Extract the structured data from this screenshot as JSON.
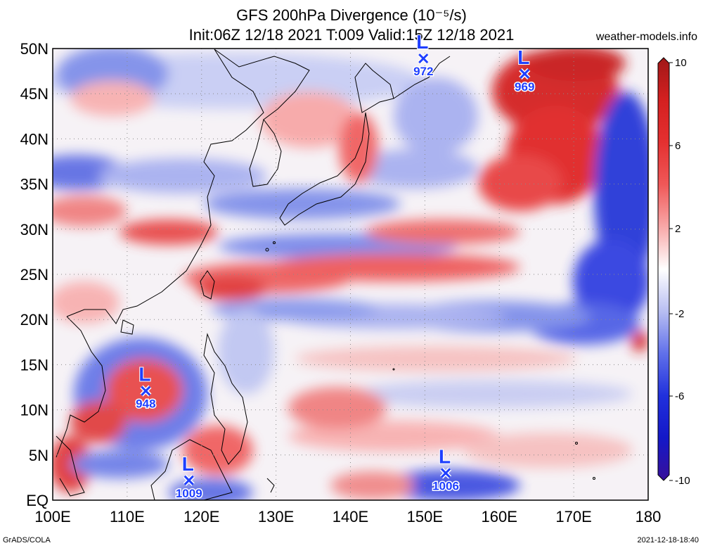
{
  "header": {
    "title_line1": "GFS 200hPa Divergence (10⁻⁵/s)",
    "title_line2": "Init:06Z 12/18 2021 T:009 Valid:15Z 12/18 2021",
    "site": "weather-models.info"
  },
  "footer": {
    "left": "GrADS/COLA",
    "right": "2021-12-18-18:40"
  },
  "map": {
    "lat_labels": [
      "50N",
      "45N",
      "40N",
      "35N",
      "30N",
      "25N",
      "20N",
      "15N",
      "10N",
      "5N",
      "EQ"
    ],
    "lon_labels": [
      "100E",
      "110E",
      "120E",
      "130E",
      "140E",
      "150E",
      "160E",
      "170E",
      "180"
    ],
    "extent": {
      "lon": [
        100,
        180
      ],
      "lat": [
        0,
        50
      ]
    }
  },
  "colorbar": {
    "labels": [
      "10",
      "6",
      "2",
      "-2",
      "-6",
      "-10"
    ],
    "colors": [
      "#a01818",
      "#d42020",
      "#f05050",
      "#f8a0a0",
      "#fde0e0",
      "#ffffff",
      "#dde0fb",
      "#a8b0f0",
      "#5060e8",
      "#1428d8",
      "#38109a"
    ]
  },
  "lows": [
    {
      "lon": 149.8,
      "lat": 48.9,
      "pressure": "972",
      "letter": "L"
    },
    {
      "lon": 163.4,
      "lat": 47.2,
      "pressure": "969",
      "letter": "L"
    },
    {
      "lon": 112.5,
      "lat": 12.1,
      "pressure": "948",
      "letter": "L"
    },
    {
      "lon": 118.3,
      "lat": 2.2,
      "pressure": "1009",
      "letter": "L"
    },
    {
      "lon": 152.8,
      "lat": 3.0,
      "pressure": "1006",
      "letter": "L"
    }
  ]
}
